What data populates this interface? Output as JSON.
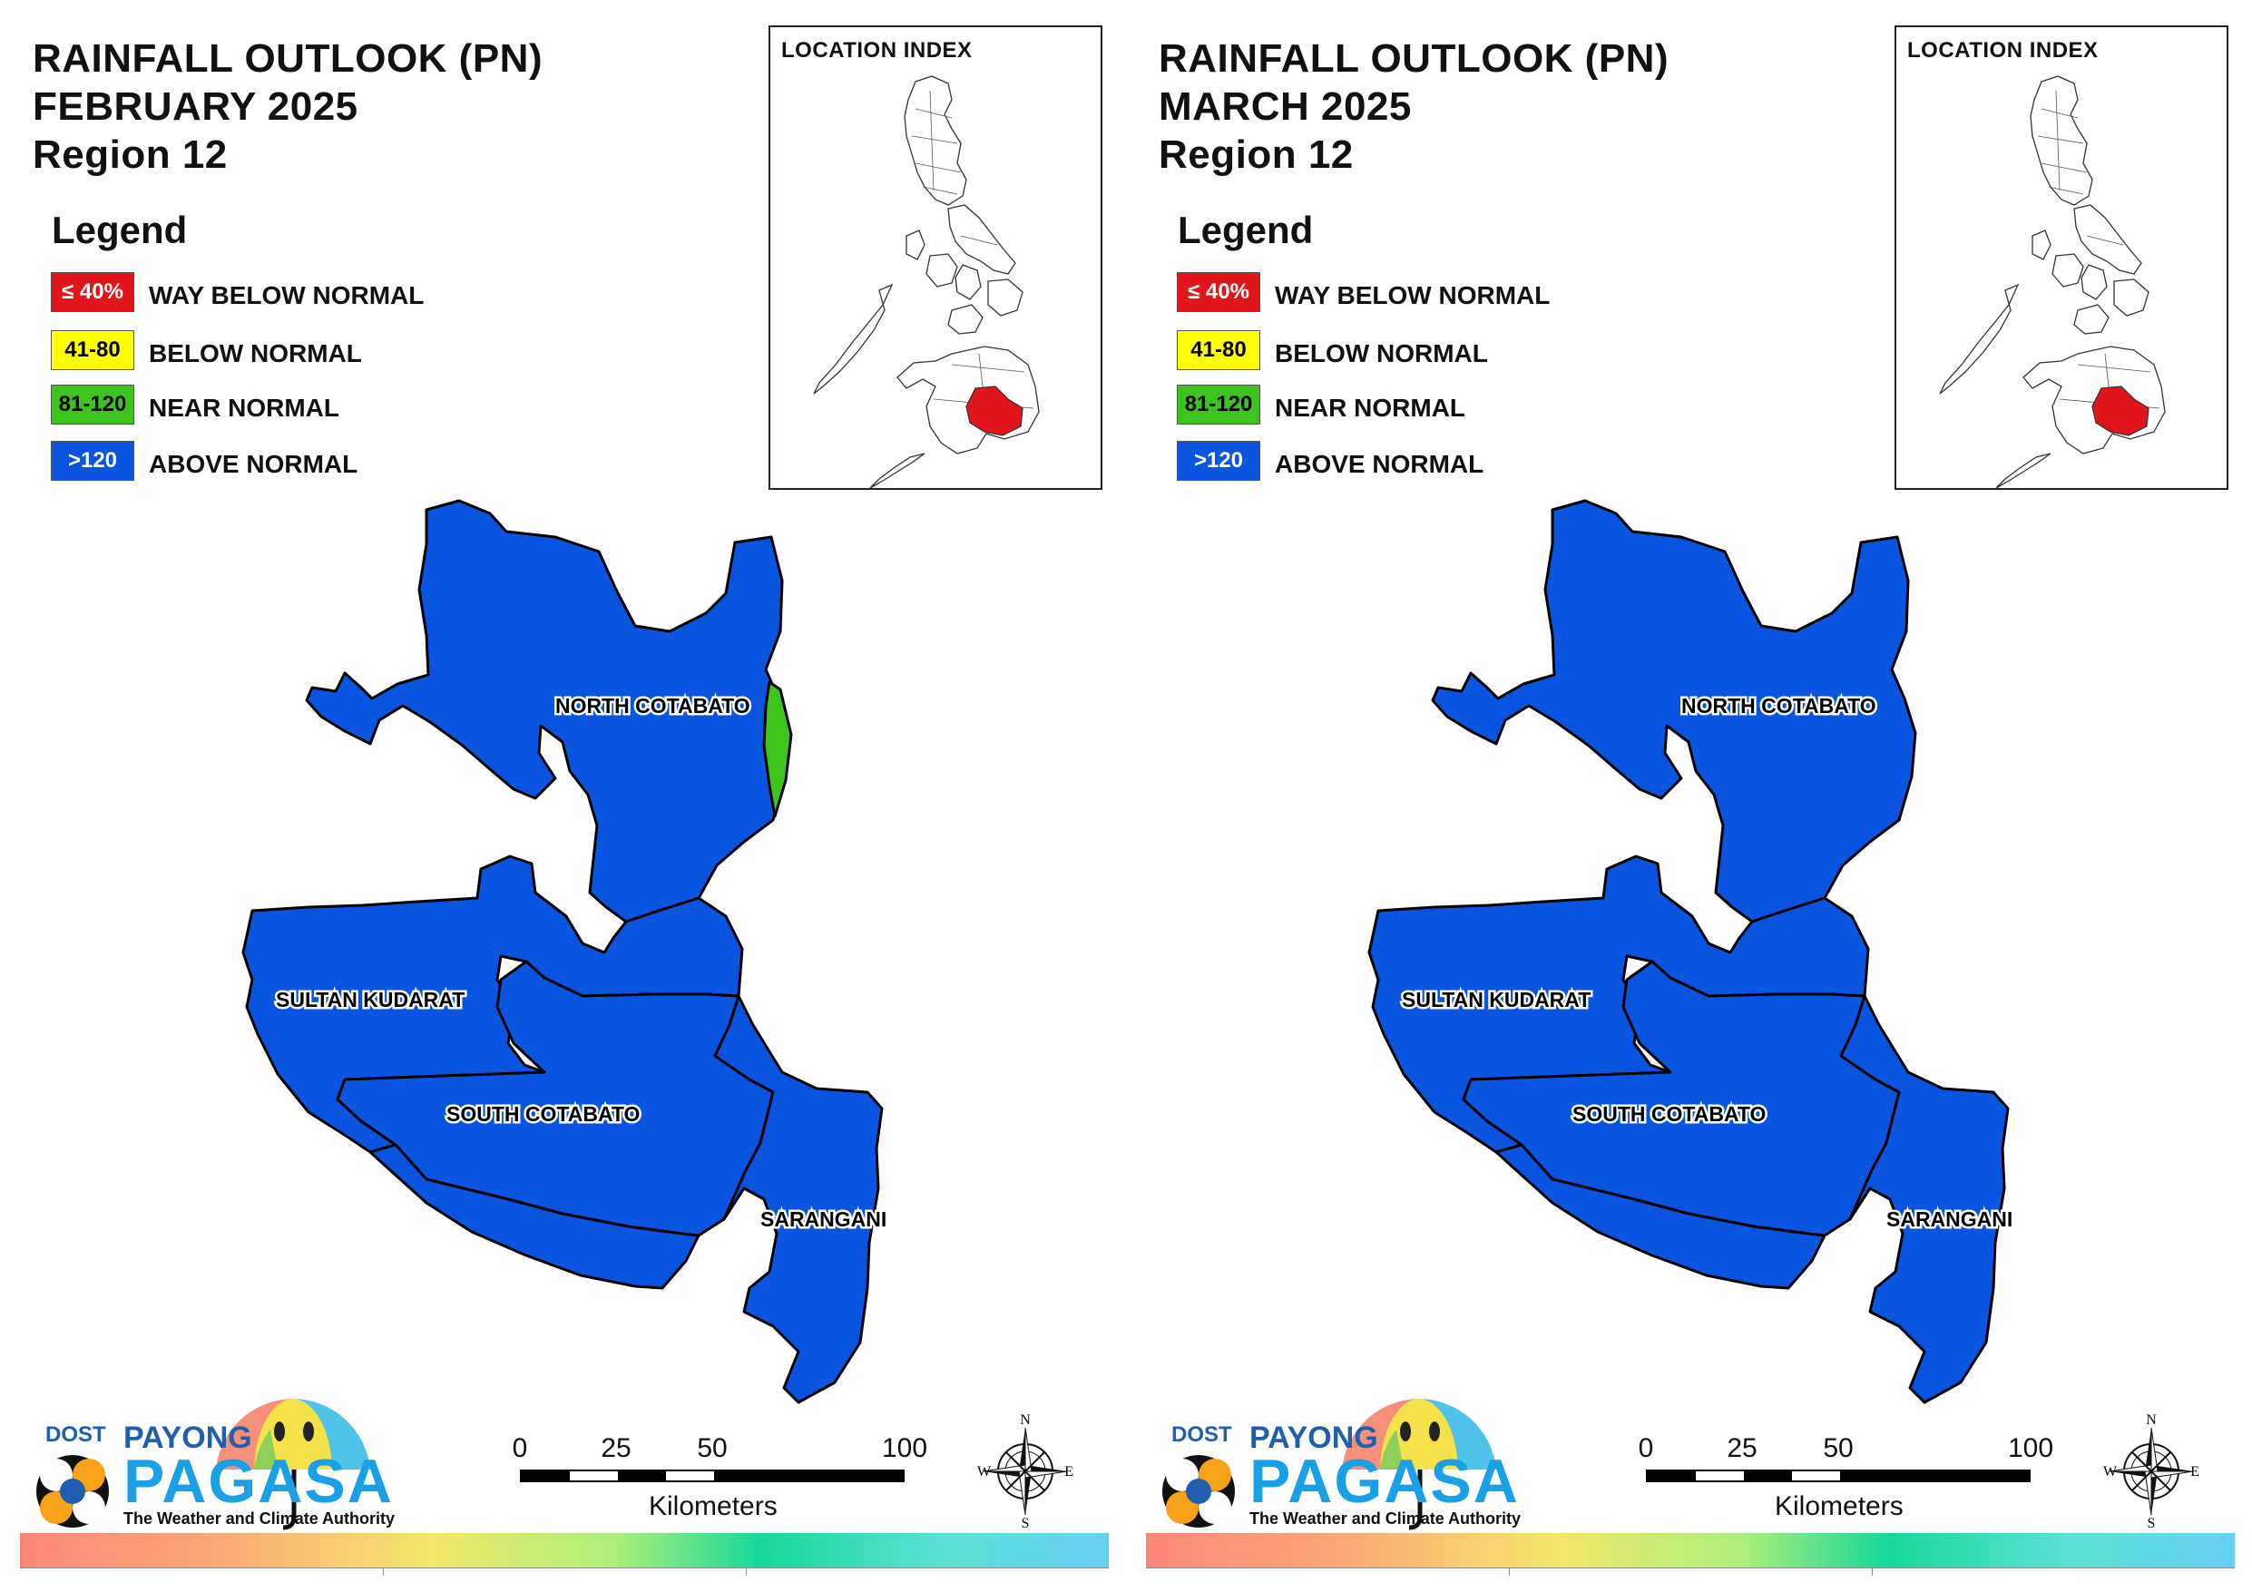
{
  "legend": {
    "title": "Legend",
    "items": [
      {
        "range": "≤ 40%",
        "label": "WAY BELOW NORMAL",
        "color": "#e2161a",
        "text_color": "#ffffff"
      },
      {
        "range": "41-80",
        "label": "BELOW NORMAL",
        "color": "#ffff00",
        "text_color": "#000000"
      },
      {
        "range": "81-120",
        "label": "NEAR NORMAL",
        "color": "#3ec41e",
        "text_color": "#000000"
      },
      {
        "range": ">120",
        "label": "ABOVE NORMAL",
        "color": "#0a55e0",
        "text_color": "#ffffff"
      }
    ]
  },
  "location_index": {
    "title": "LOCATION INDEX",
    "highlight_color": "#e2161a"
  },
  "scale_bar": {
    "ticks": [
      "0",
      "25",
      "50",
      "100"
    ],
    "unit": "Kilometers"
  },
  "compass": {
    "n": "N",
    "s": "S",
    "e": "E",
    "w": "W"
  },
  "logo": {
    "dost": "DOST",
    "payong": "PAYONG",
    "pagasa": "PAGASA",
    "tagline": "The Weather and Climate Authority"
  },
  "panels": [
    {
      "title_line1": "RAINFALL OUTLOOK (PN)",
      "title_line2": "FEBRUARY 2025",
      "title_line3": "Region 12",
      "provinces": [
        {
          "name": "NORTH COTABATO",
          "category": "ABOVE NORMAL",
          "color": "#0a55e0",
          "east_strip_category": "NEAR NORMAL",
          "east_strip_color": "#3ec41e"
        },
        {
          "name": "SULTAN KUDARAT",
          "category": "ABOVE NORMAL",
          "color": "#0a55e0"
        },
        {
          "name": "SOUTH COTABATO",
          "category": "ABOVE NORMAL",
          "color": "#0a55e0"
        },
        {
          "name": "SARANGANI",
          "category": "ABOVE NORMAL",
          "color": "#0a55e0"
        }
      ]
    },
    {
      "title_line1": "RAINFALL OUTLOOK (PN)",
      "title_line2": "MARCH 2025",
      "title_line3": "Region 12",
      "provinces": [
        {
          "name": "NORTH COTABATO",
          "category": "ABOVE NORMAL",
          "color": "#0a55e0"
        },
        {
          "name": "SULTAN KUDARAT",
          "category": "ABOVE NORMAL",
          "color": "#0a55e0"
        },
        {
          "name": "SOUTH COTABATO",
          "category": "ABOVE NORMAL",
          "color": "#0a55e0"
        },
        {
          "name": "SARANGANI",
          "category": "ABOVE NORMAL",
          "color": "#0a55e0"
        }
      ]
    }
  ]
}
